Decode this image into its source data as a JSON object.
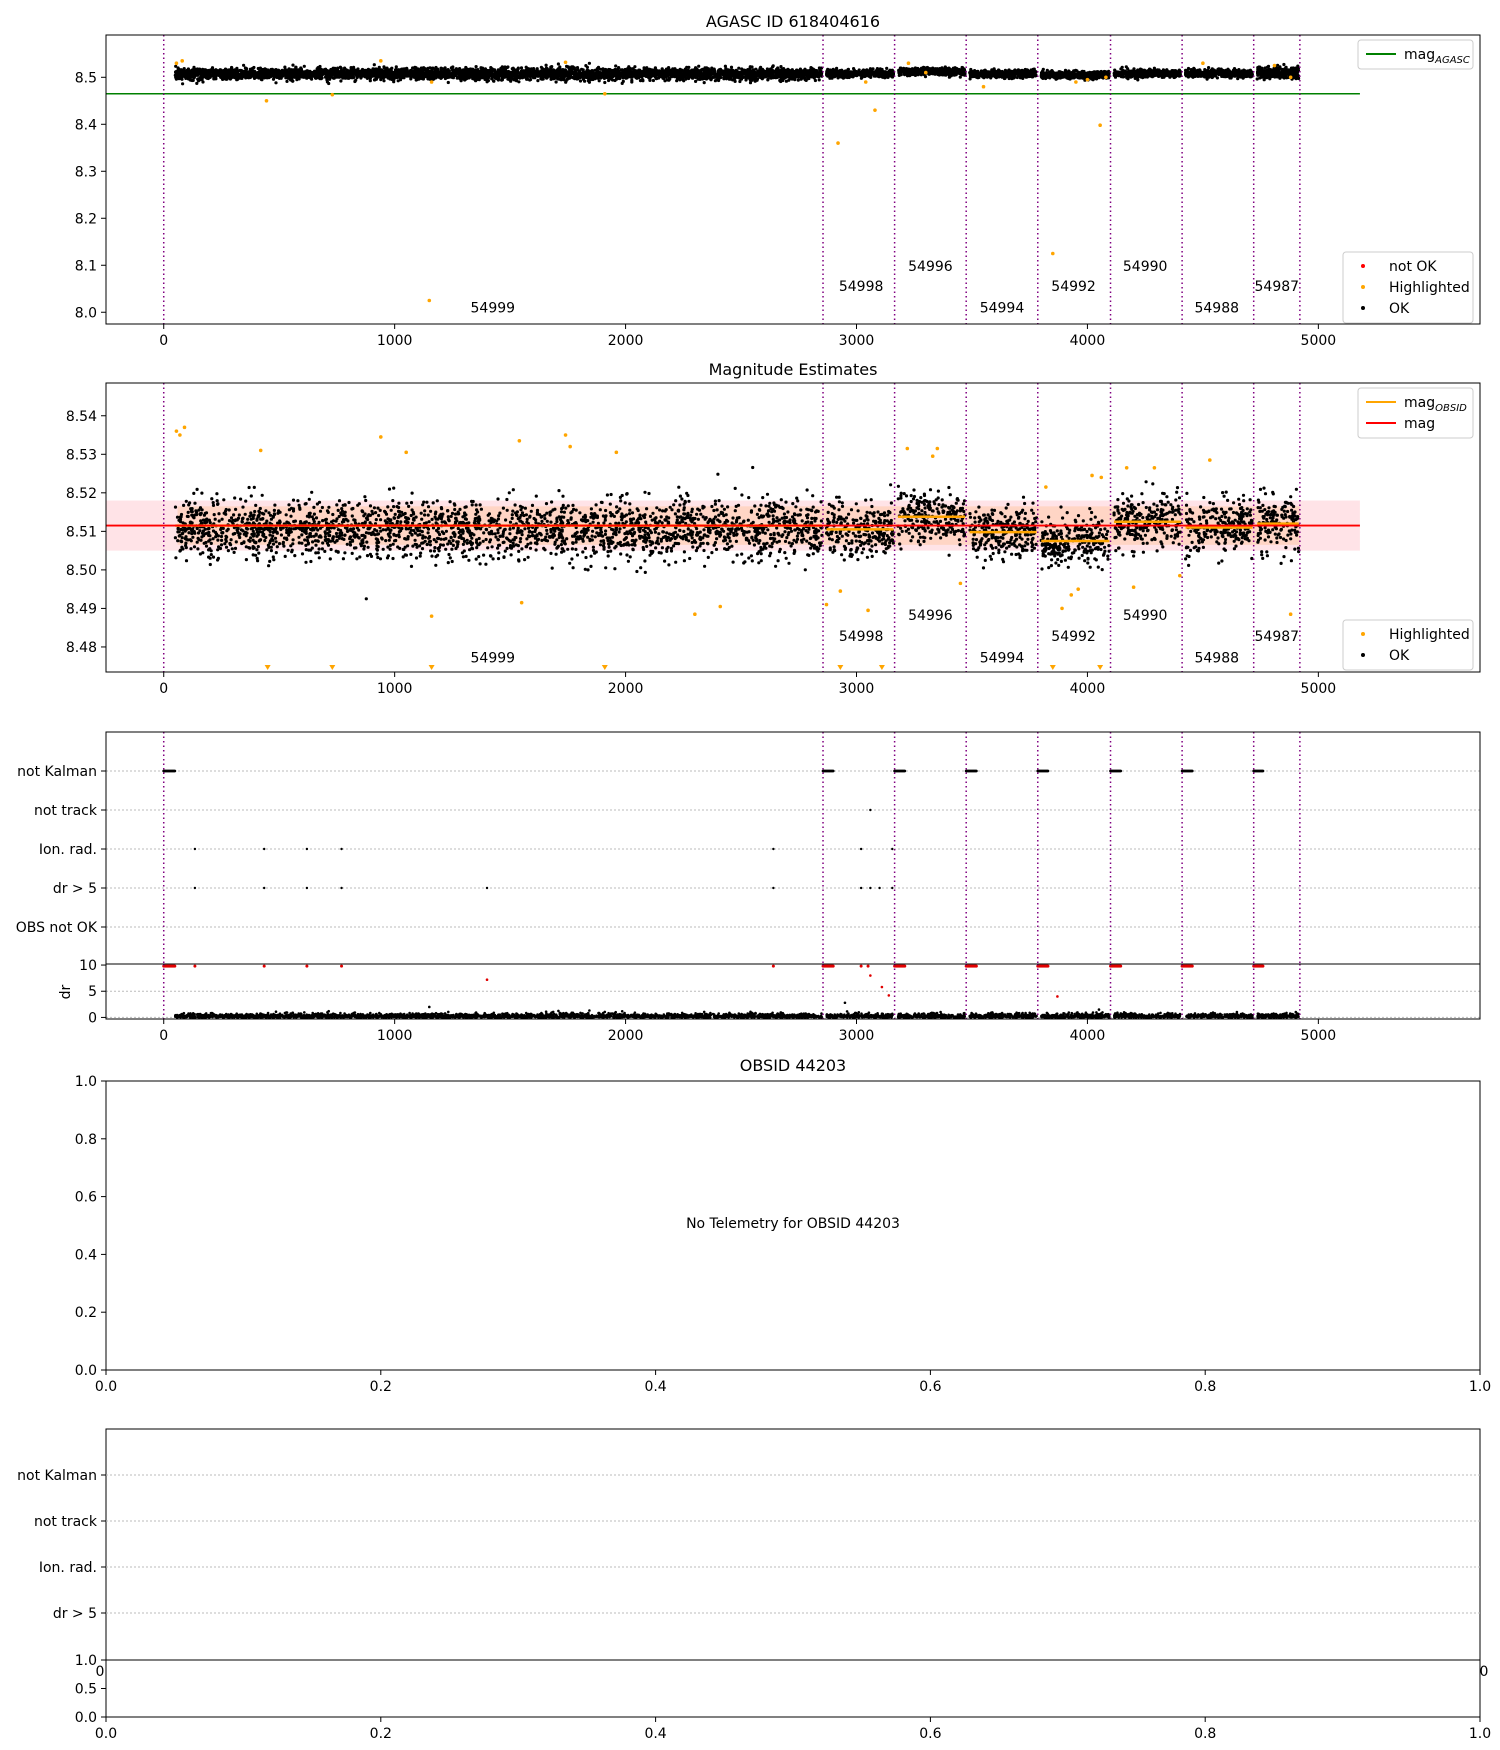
{
  "chart_data": [
    {
      "id": "agasc",
      "type": "scatter",
      "title": "AGASC ID 618404616",
      "xlim": [
        -250,
        5700
      ],
      "ylim": [
        7.975,
        8.59
      ],
      "xticks": [
        0,
        1000,
        2000,
        3000,
        4000,
        5000
      ],
      "yticks": [
        8.0,
        8.1,
        8.2,
        8.3,
        8.4,
        8.5
      ],
      "ytick_labels": [
        "8.0",
        "8.1",
        "8.2",
        "8.3",
        "8.4",
        "8.5"
      ],
      "grid": false,
      "legend_top": {
        "placement": "top-right",
        "entries": [
          {
            "label": "mag",
            "subscript": "AGASC",
            "marker": "line",
            "color": "#008000"
          }
        ]
      },
      "legend_bottom": {
        "placement": "bottom-right",
        "entries": [
          {
            "label": "not OK",
            "marker": "dot",
            "color": "#ff0000"
          },
          {
            "label": "Highlighted",
            "marker": "dot",
            "color": "#ffa500"
          },
          {
            "label": "OK",
            "marker": "dot",
            "color": "#000000"
          }
        ]
      },
      "hline": {
        "y": 8.465,
        "x": [
          -250,
          5180
        ],
        "color": "#008000"
      },
      "vlines": [
        0,
        2855,
        3165,
        3475,
        3785,
        4100,
        4410,
        4720,
        4920
      ],
      "annotations": [
        {
          "x": 1425,
          "y": 8.0,
          "text": "54999"
        },
        {
          "x": 3020,
          "y": 8.045,
          "text": "54998"
        },
        {
          "x": 3320,
          "y": 8.088,
          "text": "54996"
        },
        {
          "x": 3630,
          "y": 8.0,
          "text": "54994"
        },
        {
          "x": 3940,
          "y": 8.045,
          "text": "54992"
        },
        {
          "x": 4250,
          "y": 8.088,
          "text": "54990"
        },
        {
          "x": 4560,
          "y": 8.0,
          "text": "54988"
        },
        {
          "x": 4820,
          "y": 8.045,
          "text": "54987"
        }
      ],
      "ok_segments": [
        {
          "x": [
            50,
            2850
          ],
          "y": 8.507,
          "spread": 0.012
        },
        {
          "x": 2870,
          "x2": 3160,
          "y": 8.508,
          "spread": 0.008
        },
        {
          "x": [
            3180,
            3470
          ],
          "y": 8.512,
          "spread": 0.008
        },
        {
          "x": [
            3490,
            3780
          ],
          "y": 8.507,
          "spread": 0.008
        },
        {
          "x": [
            3800,
            4095
          ],
          "y": 8.505,
          "spread": 0.008
        },
        {
          "x": [
            4115,
            4405
          ],
          "y": 8.508,
          "spread": 0.008
        },
        {
          "x": [
            4425,
            4715
          ],
          "y": 8.508,
          "spread": 0.008
        },
        {
          "x": [
            4735,
            4915
          ],
          "y": 8.51,
          "spread": 0.012
        }
      ],
      "highlighted": [
        [
          55,
          8.53
        ],
        [
          80,
          8.535
        ],
        [
          445,
          8.45
        ],
        [
          730,
          8.463
        ],
        [
          1150,
          8.025
        ],
        [
          1160,
          8.49
        ],
        [
          940,
          8.535
        ],
        [
          1910,
          8.465
        ],
        [
          1740,
          8.532
        ],
        [
          2920,
          8.36
        ],
        [
          3080,
          8.43
        ],
        [
          3040,
          8.49
        ],
        [
          3225,
          8.53
        ],
        [
          3300,
          8.51
        ],
        [
          3550,
          8.48
        ],
        [
          3850,
          8.125
        ],
        [
          4055,
          8.398
        ],
        [
          3950,
          8.49
        ],
        [
          4000,
          8.495
        ],
        [
          4080,
          8.5
        ],
        [
          4500,
          8.53
        ],
        [
          4810,
          8.525
        ],
        [
          4880,
          8.5
        ]
      ]
    },
    {
      "id": "mag",
      "type": "scatter",
      "title": "Magnitude Estimates",
      "xlim": [
        -250,
        5700
      ],
      "ylim": [
        8.4735,
        8.5485
      ],
      "xticks": [
        0,
        1000,
        2000,
        3000,
        4000,
        5000
      ],
      "yticks": [
        8.48,
        8.49,
        8.5,
        8.51,
        8.52,
        8.53,
        8.54
      ],
      "ytick_labels": [
        "8.48",
        "8.49",
        "8.50",
        "8.51",
        "8.52",
        "8.53",
        "8.54"
      ],
      "grid": false,
      "legend_top": {
        "placement": "top-right",
        "entries": [
          {
            "label": "mag",
            "subscript": "OBSID",
            "marker": "line",
            "color": "#ffa500"
          },
          {
            "label": "mag",
            "subscript": "",
            "marker": "line",
            "color": "#ff0000"
          }
        ]
      },
      "legend_bottom": {
        "placement": "bottom-right",
        "entries": [
          {
            "label": "Highlighted",
            "marker": "dot",
            "color": "#ffa500"
          },
          {
            "label": "OK",
            "marker": "dot",
            "color": "#000000"
          }
        ]
      },
      "mag_line": {
        "y": 8.5115,
        "x": [
          -250,
          5180
        ],
        "color": "#ff0000"
      },
      "mag_band": {
        "y": [
          8.505,
          8.518
        ],
        "x": [
          -250,
          5180
        ]
      },
      "obsid_band": {
        "y": [
          8.5065,
          8.5165
        ],
        "x": [
          60,
          4920
        ]
      },
      "obsid_segments": [
        {
          "x": [
            50,
            2850
          ],
          "y": 8.5115
        },
        {
          "x": [
            2870,
            3160
          ],
          "y": 8.5105
        },
        {
          "x": [
            3180,
            3470
          ],
          "y": 8.5138
        },
        {
          "x": [
            3490,
            3780
          ],
          "y": 8.5098
        },
        {
          "x": [
            3800,
            4095
          ],
          "y": 8.5075
        },
        {
          "x": [
            4115,
            4405
          ],
          "y": 8.5125
        },
        {
          "x": [
            4425,
            4715
          ],
          "y": 8.511
        },
        {
          "x": [
            4735,
            4915
          ],
          "y": 8.512
        }
      ],
      "vlines": [
        0,
        2855,
        3165,
        3475,
        3785,
        4100,
        4410,
        4720,
        4920
      ],
      "annotations": [
        {
          "x": 1425,
          "y": 8.476,
          "text": "54999"
        },
        {
          "x": 3020,
          "y": 8.4815,
          "text": "54998"
        },
        {
          "x": 3320,
          "y": 8.487,
          "text": "54996"
        },
        {
          "x": 3630,
          "y": 8.476,
          "text": "54994"
        },
        {
          "x": 3940,
          "y": 8.4815,
          "text": "54992"
        },
        {
          "x": 4250,
          "y": 8.487,
          "text": "54990"
        },
        {
          "x": 4560,
          "y": 8.476,
          "text": "54988"
        },
        {
          "x": 4820,
          "y": 8.4815,
          "text": "54987"
        }
      ],
      "ok_segments": [
        {
          "x": [
            50,
            2850
          ],
          "y": 8.5105,
          "spread": 0.0075
        },
        {
          "x": [
            2870,
            3160
          ],
          "y": 8.5105,
          "spread": 0.007
        },
        {
          "x": [
            3180,
            3470
          ],
          "y": 8.5138,
          "spread": 0.0065
        },
        {
          "x": [
            3490,
            3780
          ],
          "y": 8.5098,
          "spread": 0.0065
        },
        {
          "x": [
            3800,
            4095
          ],
          "y": 8.5075,
          "spread": 0.0065
        },
        {
          "x": [
            4115,
            4405
          ],
          "y": 8.5125,
          "spread": 0.0065
        },
        {
          "x": [
            4425,
            4715
          ],
          "y": 8.511,
          "spread": 0.0065
        },
        {
          "x": [
            4735,
            4915
          ],
          "y": 8.512,
          "spread": 0.008
        }
      ],
      "highlighted": [
        [
          55,
          8.536
        ],
        [
          70,
          8.535
        ],
        [
          90,
          8.537
        ],
        [
          420,
          8.531
        ],
        [
          940,
          8.5345
        ],
        [
          1050,
          8.5305
        ],
        [
          1160,
          8.488
        ],
        [
          1540,
          8.5335
        ],
        [
          1550,
          8.4915
        ],
        [
          1740,
          8.535
        ],
        [
          1760,
          8.532
        ],
        [
          1960,
          8.5305
        ],
        [
          2300,
          8.4885
        ],
        [
          2410,
          8.4905
        ],
        [
          2870,
          8.491
        ],
        [
          2930,
          8.4945
        ],
        [
          3050,
          8.4895
        ],
        [
          3220,
          8.5315
        ],
        [
          3330,
          8.5295
        ],
        [
          3350,
          8.5315
        ],
        [
          3450,
          8.4965
        ],
        [
          3820,
          8.5215
        ],
        [
          3890,
          8.49
        ],
        [
          3930,
          8.4935
        ],
        [
          3960,
          8.495
        ],
        [
          4020,
          8.5245
        ],
        [
          4060,
          8.524
        ],
        [
          4170,
          8.5265
        ],
        [
          4200,
          8.4955
        ],
        [
          4290,
          8.5265
        ],
        [
          4400,
          8.4985
        ],
        [
          4530,
          8.5285
        ],
        [
          4880,
          8.4885
        ]
      ],
      "down_markers": [
        450,
        730,
        1160,
        1910,
        2930,
        3110,
        3850,
        4055
      ]
    },
    {
      "id": "flags",
      "type": "scatter",
      "title": "",
      "xlim": [
        -250,
        5700
      ],
      "categories": [
        "not Kalman",
        "not track",
        "Ion. rad.",
        "dr > 5",
        "OBS not OK"
      ],
      "xticks": [
        0,
        1000,
        2000,
        3000,
        4000,
        5000
      ],
      "vlines": [
        0,
        2855,
        3165,
        3475,
        3785,
        4100,
        4410,
        4720,
        4920
      ],
      "not_kalman": [
        [
          0,
          50
        ],
        [
          2855,
          2900
        ],
        [
          3165,
          3210
        ],
        [
          3475,
          3520
        ],
        [
          3785,
          3830
        ],
        [
          4100,
          4145
        ],
        [
          4410,
          4455
        ],
        [
          4720,
          4760
        ]
      ],
      "not_track": [
        3060
      ],
      "ion_rad": [
        135,
        435,
        620,
        770,
        2640,
        3020,
        3155
      ],
      "dr_gt_5": [
        135,
        435,
        620,
        770,
        1400,
        2640,
        3020,
        3060,
        3100,
        3155
      ],
      "obs_not_ok": []
    },
    {
      "id": "dr",
      "type": "scatter",
      "title": "",
      "xlim": [
        -250,
        5700
      ],
      "ylim": [
        -0.3,
        10.2
      ],
      "yticks": [
        0,
        5,
        10
      ],
      "ytick_labels": [
        "0",
        "5",
        "10"
      ],
      "ylabel": "dr",
      "xticks": [
        0,
        1000,
        2000,
        3000,
        4000,
        5000
      ],
      "xtick_labels": [
        "0",
        "1000",
        "2000",
        "3000",
        "4000",
        "5000"
      ],
      "vlines": [
        0,
        2855,
        3165,
        3475,
        3785,
        4100,
        4410,
        4720,
        4920
      ],
      "red_top": [
        [
          0,
          50
        ],
        [
          2855,
          2900
        ],
        [
          3165,
          3210
        ],
        [
          3475,
          3520
        ],
        [
          3785,
          3830
        ],
        [
          4100,
          4145
        ],
        [
          4410,
          4455
        ],
        [
          4720,
          4760
        ]
      ],
      "red_top_points": [
        135,
        435,
        620,
        770,
        2640,
        3020,
        3050
      ],
      "red_points": [
        [
          1400,
          7.2
        ],
        [
          3060,
          8.0
        ],
        [
          3110,
          5.8
        ],
        [
          3140,
          4.2
        ],
        [
          3870,
          4.0
        ]
      ],
      "black_segments": [
        [
          50,
          2850
        ],
        [
          2870,
          3160
        ],
        [
          3180,
          3470
        ],
        [
          3490,
          3780
        ],
        [
          3800,
          4095
        ],
        [
          4115,
          4405
        ],
        [
          4425,
          4715
        ],
        [
          4735,
          4915
        ]
      ],
      "black_points": [
        [
          1150,
          2.0
        ],
        [
          2950,
          2.8
        ],
        [
          4050,
          1.5
        ]
      ]
    },
    {
      "id": "obsid",
      "type": "scatter",
      "title": "OBSID 44203",
      "message": "No Telemetry for OBSID 44203",
      "xlim": [
        0,
        1
      ],
      "ylim": [
        0,
        1
      ],
      "xticks": [
        0,
        0.2,
        0.4,
        0.6,
        0.8,
        1.0
      ],
      "xtick_labels": [
        "0.0",
        "0.2",
        "0.4",
        "0.6",
        "0.8",
        "1.0"
      ],
      "yticks": [
        0,
        0.2,
        0.4,
        0.6,
        0.8,
        1.0
      ],
      "ytick_labels": [
        "0.0",
        "0.2",
        "0.4",
        "0.6",
        "0.8",
        "1.0"
      ]
    },
    {
      "id": "flags2",
      "type": "scatter",
      "title": "",
      "categories": [
        "not Kalman",
        "not track",
        "Ion. rad.",
        "dr > 5"
      ],
      "partial_xticks": [
        "0",
        "0"
      ]
    },
    {
      "id": "dr2",
      "type": "scatter",
      "title": "",
      "xlim": [
        0,
        1
      ],
      "ylim": [
        0,
        1
      ],
      "xticks": [
        0,
        0.2,
        0.4,
        0.6,
        0.8,
        1.0
      ],
      "xtick_labels": [
        "0.0",
        "0.2",
        "0.4",
        "0.6",
        "0.8",
        "1.0"
      ],
      "yticks": [
        0,
        0.5,
        1.0
      ],
      "ytick_labels": [
        "0.0",
        "0.5",
        "1.0"
      ]
    }
  ]
}
